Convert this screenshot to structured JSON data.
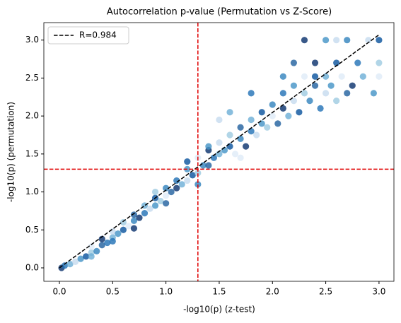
{
  "chart_data": {
    "type": "scatter",
    "title": "Autocorrelation p-value (Permutation vs Z-Score)",
    "xlabel": "-log10(p) (z-test)",
    "ylabel": "-log10(p) (permutation)",
    "xlim": [
      -0.146,
      3.14
    ],
    "ylim": [
      -0.177,
      3.23
    ],
    "xticks": [
      {
        "value": 0,
        "label": "0.0"
      },
      0.5,
      {
        "value": 1,
        "label": "1.0"
      },
      1.5,
      {
        "value": 2,
        "label": "2.0"
      },
      2.5,
      {
        "value": 3,
        "label": "3.0"
      }
    ],
    "yticks": [
      {
        "value": 0,
        "label": "0.0"
      },
      0.5,
      {
        "value": 1,
        "label": "1.0"
      },
      1.5,
      {
        "value": 2,
        "label": "2.0"
      },
      2.5,
      {
        "value": 3,
        "label": "3.0"
      }
    ],
    "colors": [
      "#08306b",
      "#2171b5",
      "#6baed6",
      "#c6dbef",
      "#4292c6",
      "#08519c",
      "#9ecae1",
      "#deebf7",
      "#3182bd",
      "#1f5f9e"
    ],
    "x": [
      0.02,
      0.05,
      0.1,
      0.15,
      0.2,
      0.25,
      0.3,
      0.3,
      0.35,
      0.4,
      0.4,
      0.45,
      0.5,
      0.5,
      0.55,
      0.6,
      0.6,
      0.65,
      0.7,
      0.7,
      0.75,
      0.8,
      0.8,
      0.85,
      0.9,
      0.9,
      0.95,
      1.0,
      1.0,
      1.05,
      1.1,
      1.1,
      1.15,
      1.2,
      1.2,
      1.25,
      1.3,
      1.3,
      1.35,
      1.4,
      1.4,
      1.45,
      1.5,
      1.5,
      1.55,
      1.6,
      1.6,
      1.65,
      1.7,
      1.7,
      1.75,
      1.8,
      1.8,
      1.85,
      1.9,
      1.9,
      1.95,
      2.0,
      2.0,
      2.05,
      2.1,
      2.1,
      2.15,
      2.2,
      2.2,
      2.25,
      2.3,
      2.3,
      2.35,
      2.4,
      2.4,
      2.45,
      2.5,
      2.5,
      2.55,
      2.6,
      2.6,
      2.65,
      2.7,
      2.7,
      2.75,
      2.8,
      2.85,
      2.9,
      2.95,
      3.0,
      3.0,
      3.0,
      2.1,
      2.2,
      2.3,
      1.8,
      1.6,
      1.5,
      1.4,
      1.2,
      0.9,
      1.7,
      1.3,
      1.0,
      0.7,
      0.5,
      0.3,
      2.6,
      2.5,
      2.4
    ],
    "values": [
      0,
      0.03,
      0.05,
      0.08,
      0.12,
      0.15,
      0.2,
      0.28,
      0.22,
      0.3,
      0.38,
      0.33,
      0.4,
      0.48,
      0.45,
      0.5,
      0.6,
      0.55,
      0.62,
      0.7,
      0.66,
      0.72,
      0.82,
      0.78,
      0.82,
      0.92,
      0.88,
      0.95,
      1.05,
      1.0,
      1.05,
      1.15,
      1.1,
      1.15,
      1.3,
      1.22,
      1.25,
      1.45,
      1.35,
      1.35,
      1.55,
      1.45,
      1.5,
      1.65,
      1.55,
      1.6,
      1.75,
      1.5,
      1.7,
      1.85,
      1.6,
      1.8,
      1.95,
      1.75,
      1.9,
      2.05,
      1.85,
      2.0,
      2.15,
      1.9,
      2.1,
      2.3,
      2.0,
      2.2,
      2.4,
      2.05,
      2.3,
      2.52,
      2.2,
      2.4,
      2.7,
      2.1,
      2.52,
      2.3,
      2.4,
      2.7,
      2.2,
      2.52,
      3.0,
      2.3,
      2.4,
      2.7,
      2.52,
      3.0,
      2.3,
      3.0,
      2.7,
      2.52,
      2.52,
      2.7,
      3.0,
      2.3,
      2.05,
      1.95,
      1.6,
      1.4,
      1.0,
      1.45,
      1.1,
      0.85,
      0.52,
      0.35,
      0.15,
      3.0,
      3.0,
      2.52
    ],
    "fit_line": {
      "name": "R=0.984",
      "color": "#000000",
      "x": [
        0,
        3.0
      ],
      "values": [
        0,
        3.07
      ]
    },
    "reference_lines": {
      "x": 1.3,
      "y": 1.3,
      "color": "#e00000"
    },
    "legend": "upper left"
  }
}
